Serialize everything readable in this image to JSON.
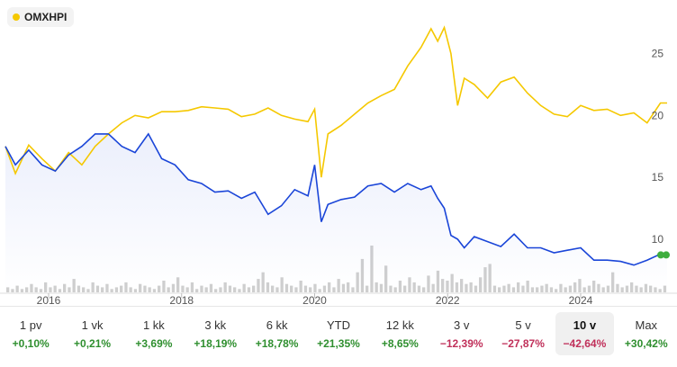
{
  "legend": {
    "label": "OMXHPI",
    "color": "#f5c800"
  },
  "colors": {
    "index_line": "#f5c800",
    "stock_line": "#1a45d8",
    "volume": "#cfcfcf",
    "end_marker": "#3fae3f"
  },
  "chart_data": {
    "type": "line",
    "x_tick_labels": [
      "2016",
      "2018",
      "2020",
      "2022",
      "2024"
    ],
    "x_range": [
      2015.35,
      2025.3
    ],
    "y_tick_labels": [
      "25",
      "20",
      "15",
      "10"
    ],
    "ylim": [
      5.7,
      28.6
    ],
    "grid": false,
    "series": [
      {
        "name": "OMXHPI",
        "x": [
          2015.35,
          2015.5,
          2015.7,
          2015.9,
          2016.1,
          2016.3,
          2016.5,
          2016.7,
          2016.9,
          2017.1,
          2017.3,
          2017.5,
          2017.7,
          2017.9,
          2018.1,
          2018.3,
          2018.5,
          2018.7,
          2018.9,
          2019.1,
          2019.3,
          2019.5,
          2019.7,
          2019.9,
          2020.0,
          2020.1,
          2020.2,
          2020.4,
          2020.6,
          2020.8,
          2021.0,
          2021.2,
          2021.4,
          2021.6,
          2021.75,
          2021.85,
          2021.95,
          2022.05,
          2022.15,
          2022.25,
          2022.4,
          2022.6,
          2022.8,
          2023.0,
          2023.2,
          2023.4,
          2023.6,
          2023.8,
          2024.0,
          2024.2,
          2024.4,
          2024.6,
          2024.8,
          2025.0,
          2025.2,
          2025.3
        ],
        "y": [
          17.5,
          15.3,
          17.6,
          16.5,
          15.5,
          17.0,
          16.0,
          17.5,
          18.5,
          19.4,
          20.0,
          19.8,
          20.3,
          20.3,
          20.4,
          20.7,
          20.6,
          20.5,
          19.9,
          20.1,
          20.6,
          20.0,
          19.7,
          19.5,
          20.5,
          15.0,
          18.5,
          19.2,
          20.1,
          21.0,
          21.6,
          22.1,
          24.0,
          25.5,
          27.0,
          26.0,
          27.1,
          25.0,
          20.8,
          23.0,
          22.5,
          21.4,
          22.7,
          23.1,
          21.8,
          20.8,
          20.1,
          19.9,
          20.8,
          20.4,
          20.5,
          20.0,
          20.2,
          19.4,
          21.0,
          21.0
        ]
      },
      {
        "name": "",
        "x": [
          2015.35,
          2015.5,
          2015.7,
          2015.9,
          2016.1,
          2016.3,
          2016.5,
          2016.7,
          2016.9,
          2017.1,
          2017.3,
          2017.5,
          2017.7,
          2017.9,
          2018.1,
          2018.3,
          2018.5,
          2018.7,
          2018.9,
          2019.1,
          2019.3,
          2019.5,
          2019.7,
          2019.9,
          2020.0,
          2020.1,
          2020.2,
          2020.4,
          2020.6,
          2020.8,
          2021.0,
          2021.2,
          2021.4,
          2021.6,
          2021.75,
          2021.85,
          2021.95,
          2022.05,
          2022.15,
          2022.25,
          2022.4,
          2022.6,
          2022.8,
          2023.0,
          2023.2,
          2023.4,
          2023.6,
          2023.8,
          2024.0,
          2024.2,
          2024.4,
          2024.6,
          2024.8,
          2025.0,
          2025.2,
          2025.3
        ],
        "y": [
          17.5,
          16.0,
          17.2,
          16.0,
          15.5,
          16.8,
          17.5,
          18.5,
          18.5,
          17.5,
          17.0,
          18.5,
          16.5,
          16.0,
          14.8,
          14.5,
          13.8,
          13.9,
          13.3,
          13.8,
          12.0,
          12.7,
          14.0,
          13.5,
          16.0,
          11.4,
          12.8,
          13.2,
          13.4,
          14.3,
          14.5,
          13.8,
          14.5,
          14.0,
          14.3,
          13.3,
          12.5,
          10.3,
          10.0,
          9.3,
          10.2,
          9.8,
          9.4,
          10.4,
          9.3,
          9.3,
          8.9,
          9.1,
          9.3,
          8.3,
          8.3,
          8.2,
          7.9,
          8.3,
          8.8,
          8.8
        ]
      }
    ],
    "volume": [
      3,
      2,
      4,
      2,
      3,
      5,
      3,
      2,
      6,
      3,
      4,
      2,
      5,
      3,
      8,
      4,
      3,
      2,
      6,
      4,
      3,
      5,
      2,
      3,
      4,
      6,
      3,
      2,
      5,
      4,
      3,
      2,
      4,
      7,
      3,
      5,
      9,
      4,
      3,
      6,
      2,
      4,
      3,
      5,
      2,
      3,
      6,
      4,
      3,
      2,
      5,
      3,
      4,
      8,
      12,
      6,
      4,
      3,
      9,
      5,
      4,
      3,
      7,
      4,
      3,
      5,
      2,
      4,
      6,
      3,
      8,
      5,
      6,
      3,
      12,
      20,
      4,
      28,
      6,
      5,
      16,
      4,
      3,
      7,
      4,
      9,
      6,
      4,
      3,
      10,
      5,
      13,
      8,
      7,
      11,
      6,
      8,
      5,
      6,
      4,
      9,
      15,
      17,
      4,
      3,
      4,
      5,
      3,
      6,
      4,
      7,
      3,
      3,
      4,
      5,
      3,
      2,
      5,
      3,
      4,
      6,
      8,
      3,
      4,
      7,
      5,
      3,
      4,
      12,
      5,
      3,
      4,
      6,
      4,
      3,
      5,
      4,
      3,
      2,
      4
    ]
  },
  "periods": [
    {
      "label": "1 pv",
      "change": "+0,10%",
      "trend": "pos"
    },
    {
      "label": "1 vk",
      "change": "+0,21%",
      "trend": "pos"
    },
    {
      "label": "1 kk",
      "change": "+3,69%",
      "trend": "pos"
    },
    {
      "label": "3 kk",
      "change": "+18,19%",
      "trend": "pos"
    },
    {
      "label": "6 kk",
      "change": "+18,78%",
      "trend": "pos"
    },
    {
      "label": "YTD",
      "change": "+21,35%",
      "trend": "pos"
    },
    {
      "label": "12 kk",
      "change": "+8,65%",
      "trend": "pos"
    },
    {
      "label": "3 v",
      "change": "−12,39%",
      "trend": "neg"
    },
    {
      "label": "5 v",
      "change": "−27,87%",
      "trend": "neg"
    },
    {
      "label": "10 v",
      "change": "−42,64%",
      "trend": "neg",
      "active": true
    },
    {
      "label": "Max",
      "change": "+30,42%",
      "trend": "pos"
    }
  ]
}
